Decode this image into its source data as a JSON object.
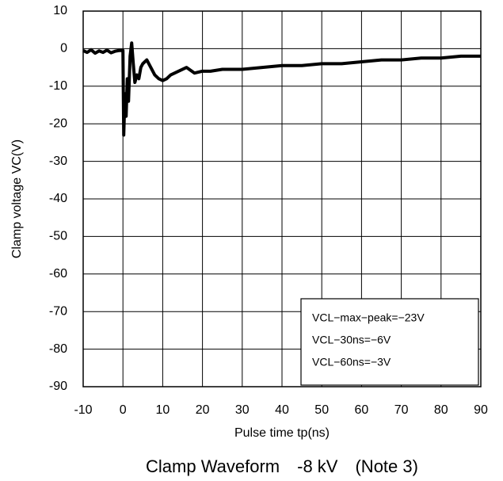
{
  "chart_data": {
    "type": "line",
    "title": "Clamp Waveform　-8 kV　(Note 3)",
    "x_label": "Pulse time tp(ns)",
    "y_label": "Clamp voltage VC(V)",
    "annotations": [
      "VCL−max−peak=−23V",
      "VCL−30ns=−6V",
      "VCL−60ns=−3V"
    ],
    "x": [
      -10,
      -9,
      -8,
      -7,
      -6,
      -5,
      -4,
      -3,
      -2,
      -1,
      0,
      0.2,
      0.5,
      0.8,
      1.1,
      1.4,
      1.8,
      2.2,
      2.6,
      3,
      3.5,
      4,
      4.5,
      5,
      6,
      7,
      8,
      9,
      10,
      11,
      12,
      14,
      16,
      18,
      20,
      22,
      25,
      30,
      35,
      40,
      45,
      50,
      55,
      60,
      65,
      70,
      75,
      80,
      85,
      90
    ],
    "series": [
      {
        "name": "VC",
        "color": "#000000",
        "values": [
          -0.5,
          -1,
          -0.3,
          -1.2,
          -0.6,
          -1,
          -0.4,
          -1.1,
          -0.7,
          -0.5,
          -0.5,
          -23,
          -12,
          -18,
          -8,
          -14,
          -2,
          1.5,
          -4,
          -9,
          -7,
          -8,
          -5,
          -4,
          -3,
          -5,
          -7,
          -8,
          -8.5,
          -8,
          -7,
          -6,
          -5,
          -6.5,
          -6,
          -6,
          -5.5,
          -5.5,
          -5,
          -4.5,
          -4.5,
          -4,
          -4,
          -3.5,
          -3,
          -3,
          -2.5,
          -2.5,
          -2,
          -2
        ]
      }
    ],
    "xlim": [
      -10,
      90
    ],
    "ylim": [
      -90,
      10
    ],
    "xticks": [
      -10,
      0,
      10,
      20,
      30,
      40,
      50,
      60,
      70,
      80,
      90
    ],
    "yticks": [
      -90,
      -80,
      -70,
      -60,
      -50,
      -40,
      -30,
      -20,
      -10,
      0,
      10
    ],
    "grid": true
  }
}
